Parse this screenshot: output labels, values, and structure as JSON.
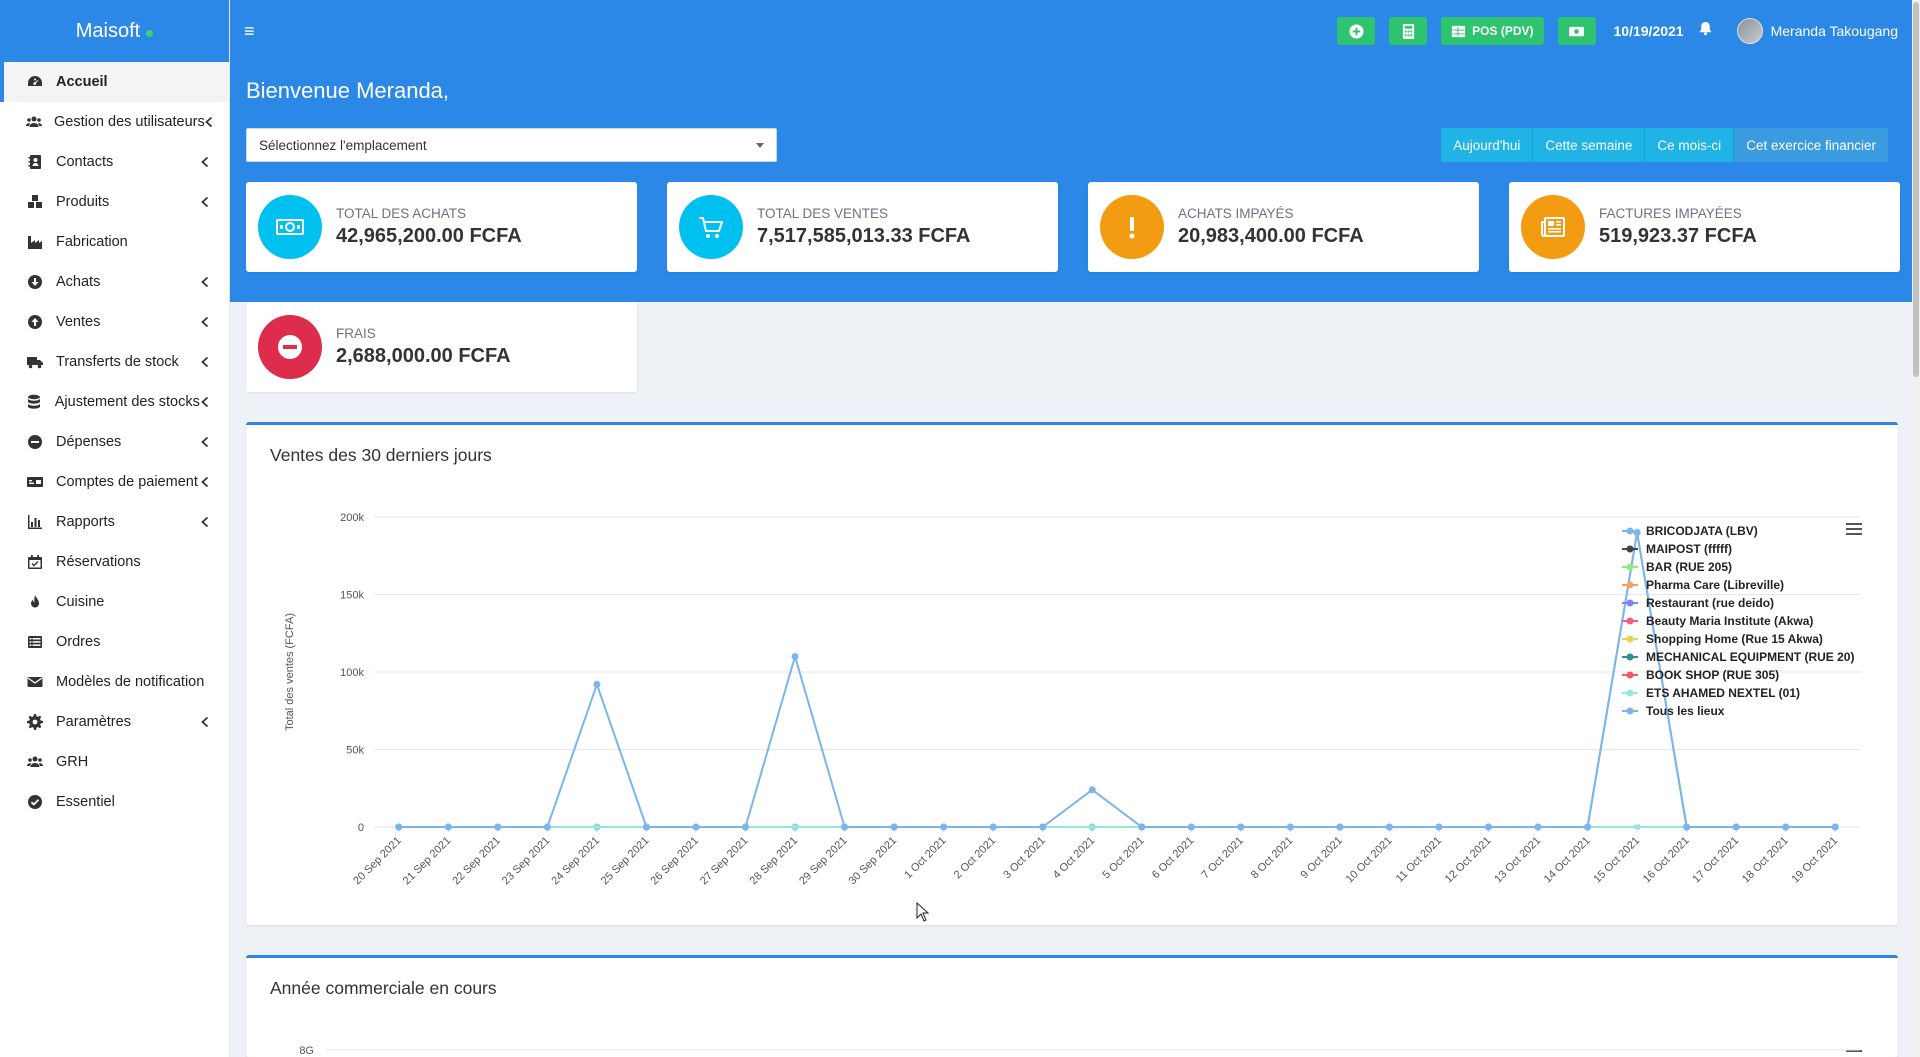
{
  "brand": {
    "name": "Maisoft"
  },
  "sidebar": {
    "items": [
      {
        "label": "Accueil",
        "icon": "dashboard-icon",
        "active": true,
        "submenu": false
      },
      {
        "label": "Gestion des utilisateurs",
        "icon": "users-icon",
        "submenu": true
      },
      {
        "label": "Contacts",
        "icon": "address-book-icon",
        "submenu": true
      },
      {
        "label": "Produits",
        "icon": "cubes-icon",
        "submenu": true
      },
      {
        "label": "Fabrication",
        "icon": "industry-icon",
        "submenu": false
      },
      {
        "label": "Achats",
        "icon": "arrow-circle-down-icon",
        "submenu": true
      },
      {
        "label": "Ventes",
        "icon": "arrow-circle-up-icon",
        "submenu": true
      },
      {
        "label": "Transferts de stock",
        "icon": "truck-icon",
        "submenu": true
      },
      {
        "label": "Ajustement des stocks",
        "icon": "database-icon",
        "submenu": true
      },
      {
        "label": "Dépenses",
        "icon": "minus-circle-icon",
        "submenu": true
      },
      {
        "label": "Comptes de paiement",
        "icon": "money-check-icon",
        "submenu": true
      },
      {
        "label": "Rapports",
        "icon": "bar-chart-icon",
        "submenu": true
      },
      {
        "label": "Réservations",
        "icon": "calendar-icon",
        "submenu": false
      },
      {
        "label": "Cuisine",
        "icon": "fire-icon",
        "submenu": false
      },
      {
        "label": "Ordres",
        "icon": "list-icon",
        "submenu": false
      },
      {
        "label": "Modèles de notification",
        "icon": "envelope-icon",
        "submenu": false
      },
      {
        "label": "Paramètres",
        "icon": "cog-icon",
        "submenu": true
      },
      {
        "label": "GRH",
        "icon": "users-icon",
        "submenu": false
      },
      {
        "label": "Essentiel",
        "icon": "check-circle-icon",
        "submenu": false
      }
    ]
  },
  "topbar": {
    "pos_label": "POS (PDV)",
    "date": "10/19/2021",
    "user_name": "Meranda Takougang"
  },
  "welcome": "Bienvenue Meranda,",
  "location_select": {
    "value": "Sélectionnez l'emplacement"
  },
  "periods": [
    "Aujourd'hui",
    "Cette semaine",
    "Ce mois-ci",
    "Cet exercice financier"
  ],
  "stats": [
    {
      "label": "TOTAL DES ACHATS",
      "value": "42,965,200.00 FCFA",
      "color": "#00c0ef",
      "icon": "money-icon"
    },
    {
      "label": "TOTAL DES VENTES",
      "value": "7,517,585,013.33 FCFA",
      "color": "#00c0ef",
      "icon": "cart-icon"
    },
    {
      "label": "ACHATS IMPAYÉS",
      "value": "20,983,400.00 FCFA",
      "color": "#f39c12",
      "icon": "exclamation-icon"
    },
    {
      "label": "FACTURES IMPAYÉES",
      "value": "519,923.37 FCFA",
      "color": "#f39c12",
      "icon": "newspaper-icon"
    },
    {
      "label": "FRAIS",
      "value": "2,688,000.00 FCFA",
      "color": "#dd2c4c",
      "icon": "minus-circle-icon"
    }
  ],
  "sales_chart": {
    "title": "Ventes des 30 derniers jours",
    "chart_data": {
      "type": "line",
      "ylabel": "Total des ventes (FCFA)",
      "ylim": [
        0,
        200000
      ],
      "yticks": [
        {
          "value": 0,
          "label": "0"
        },
        {
          "value": 50000,
          "label": "50k"
        },
        {
          "value": 100000,
          "label": "100k"
        },
        {
          "value": 150000,
          "label": "150k"
        },
        {
          "value": 200000,
          "label": "200k"
        }
      ],
      "categories": [
        "20 Sep 2021",
        "21 Sep 2021",
        "22 Sep 2021",
        "23 Sep 2021",
        "24 Sep 2021",
        "25 Sep 2021",
        "26 Sep 2021",
        "27 Sep 2021",
        "28 Sep 2021",
        "29 Sep 2021",
        "30 Sep 2021",
        "1 Oct 2021",
        "2 Oct 2021",
        "3 Oct 2021",
        "4 Oct 2021",
        "5 Oct 2021",
        "6 Oct 2021",
        "7 Oct 2021",
        "8 Oct 2021",
        "9 Oct 2021",
        "10 Oct 2021",
        "11 Oct 2021",
        "12 Oct 2021",
        "13 Oct 2021",
        "14 Oct 2021",
        "15 Oct 2021",
        "16 Oct 2021",
        "17 Oct 2021",
        "18 Oct 2021",
        "19 Oct 2021"
      ],
      "legend_position": "top-right",
      "series": [
        {
          "name": "BRICODJATA (LBV)",
          "color": "#7cb5ec",
          "values": [
            0,
            0,
            0,
            0,
            0,
            0,
            0,
            0,
            0,
            0,
            0,
            0,
            0,
            0,
            0,
            0,
            0,
            0,
            0,
            0,
            0,
            0,
            0,
            0,
            0,
            190000,
            0,
            0,
            0,
            0
          ]
        },
        {
          "name": "MAIPOST (fffff)",
          "color": "#434348",
          "values": [
            0,
            0,
            0,
            0,
            0,
            0,
            0,
            0,
            0,
            0,
            0,
            0,
            0,
            0,
            0,
            0,
            0,
            0,
            0,
            0,
            0,
            0,
            0,
            0,
            0,
            0,
            0,
            0,
            0,
            0
          ]
        },
        {
          "name": "BAR (RUE 205)",
          "color": "#90ed7d",
          "values": [
            0,
            0,
            0,
            0,
            0,
            0,
            0,
            0,
            0,
            0,
            0,
            0,
            0,
            0,
            0,
            0,
            0,
            0,
            0,
            0,
            0,
            0,
            0,
            0,
            0,
            0,
            0,
            0,
            0,
            0
          ]
        },
        {
          "name": "Pharma Care (Libreville)",
          "color": "#f7a35c",
          "values": [
            0,
            0,
            0,
            0,
            0,
            0,
            0,
            0,
            0,
            0,
            0,
            0,
            0,
            0,
            0,
            0,
            0,
            0,
            0,
            0,
            0,
            0,
            0,
            0,
            0,
            0,
            0,
            0,
            0,
            0
          ]
        },
        {
          "name": "Restaurant (rue deido)",
          "color": "#8085e9",
          "values": [
            0,
            0,
            0,
            0,
            0,
            0,
            0,
            0,
            0,
            0,
            0,
            0,
            0,
            0,
            0,
            0,
            0,
            0,
            0,
            0,
            0,
            0,
            0,
            0,
            0,
            0,
            0,
            0,
            0,
            0
          ]
        },
        {
          "name": "Beauty Maria Institute (Akwa)",
          "color": "#f15c80",
          "values": [
            0,
            0,
            0,
            0,
            0,
            0,
            0,
            0,
            0,
            0,
            0,
            0,
            0,
            0,
            0,
            0,
            0,
            0,
            0,
            0,
            0,
            0,
            0,
            0,
            0,
            0,
            0,
            0,
            0,
            0
          ]
        },
        {
          "name": "Shopping Home (Rue 15 Akwa)",
          "color": "#e4d354",
          "values": [
            0,
            0,
            0,
            0,
            0,
            0,
            0,
            0,
            0,
            0,
            0,
            0,
            0,
            0,
            0,
            0,
            0,
            0,
            0,
            0,
            0,
            0,
            0,
            0,
            0,
            0,
            0,
            0,
            0,
            0
          ]
        },
        {
          "name": "MECHANICAL EQUIPMENT (RUE 20)",
          "color": "#2b908f",
          "values": [
            0,
            0,
            0,
            0,
            0,
            0,
            0,
            0,
            0,
            0,
            0,
            0,
            0,
            0,
            0,
            0,
            0,
            0,
            0,
            0,
            0,
            0,
            0,
            0,
            0,
            0,
            0,
            0,
            0,
            0
          ]
        },
        {
          "name": "BOOK SHOP (RUE 305)",
          "color": "#f45b5b",
          "values": [
            0,
            0,
            0,
            0,
            0,
            0,
            0,
            0,
            0,
            0,
            0,
            0,
            0,
            0,
            0,
            0,
            0,
            0,
            0,
            0,
            0,
            0,
            0,
            0,
            0,
            0,
            0,
            0,
            0,
            0
          ]
        },
        {
          "name": "ETS AHAMED NEXTEL (01)",
          "color": "#91e8e1",
          "values": [
            0,
            0,
            0,
            0,
            0,
            0,
            0,
            0,
            0,
            0,
            0,
            0,
            0,
            0,
            0,
            0,
            0,
            0,
            0,
            0,
            0,
            0,
            0,
            0,
            0,
            0,
            0,
            0,
            0,
            0
          ]
        },
        {
          "name": "Tous les lieux",
          "color": "#7cb5ec",
          "values": [
            0,
            0,
            0,
            0,
            92000,
            0,
            0,
            0,
            110000,
            0,
            0,
            0,
            0,
            0,
            24000,
            0,
            0,
            0,
            0,
            0,
            0,
            0,
            0,
            0,
            0,
            190000,
            0,
            0,
            0,
            0
          ]
        }
      ]
    }
  },
  "fy_chart": {
    "title": "Année commerciale en cours",
    "first_tick": "8G"
  }
}
